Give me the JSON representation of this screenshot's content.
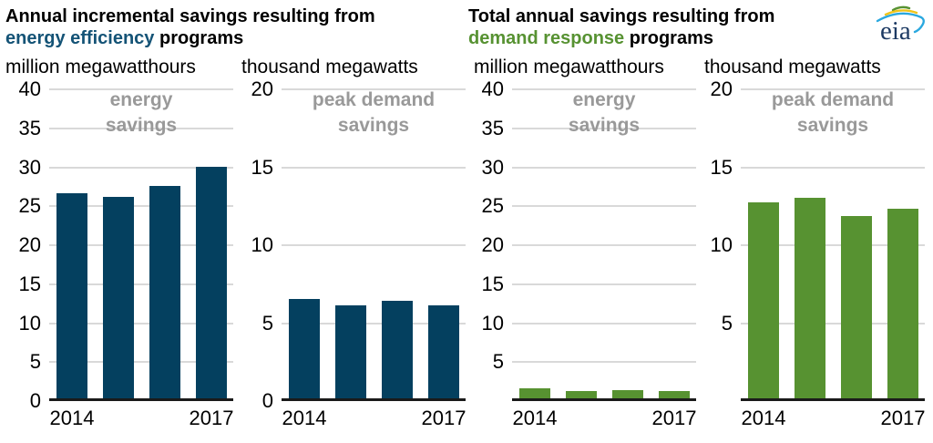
{
  "titles": {
    "left": {
      "line1": "Annual incremental savings resulting from",
      "accent": "energy efficiency",
      "rest": "programs"
    },
    "right": {
      "line1": "Total annual savings resulting from",
      "accent": "demand response",
      "rest": "programs"
    }
  },
  "logo": {
    "text": "eia"
  },
  "colors": {
    "ee_bar": "#04405f",
    "dr_bar": "#579231",
    "ee_accent": "#145376",
    "dr_accent": "#579232",
    "panel_label_gray": "#999999",
    "gridline": "#d9d9d9",
    "axis_line": "#1a1a1a"
  },
  "chart_data": [
    {
      "type": "bar",
      "group": "energy efficiency",
      "label_lines": [
        "energy",
        "savings"
      ],
      "unit": "million megawatthours",
      "categories": [
        "2014",
        "2015",
        "2016",
        "2017"
      ],
      "values": [
        26.5,
        26.1,
        27.5,
        29.9
      ],
      "ylim": [
        0,
        40
      ],
      "yticks": [
        40,
        35,
        30,
        25,
        20,
        15,
        10,
        5,
        0
      ],
      "bar_color": "#04405f",
      "visible_x_labels": [
        "2014",
        "2017"
      ]
    },
    {
      "type": "bar",
      "group": "energy efficiency",
      "label_lines": [
        "peak demand",
        "savings"
      ],
      "unit": "thousand megawatts",
      "categories": [
        "2014",
        "2015",
        "2016",
        "2017"
      ],
      "values": [
        6.5,
        6.1,
        6.4,
        6.1
      ],
      "ylim": [
        0,
        20
      ],
      "yticks": [
        20,
        15,
        10,
        5,
        0
      ],
      "bar_color": "#04405f",
      "visible_x_labels": [
        "2014",
        "2017"
      ]
    },
    {
      "type": "bar",
      "group": "demand response",
      "label_lines": [
        "energy",
        "savings"
      ],
      "unit": "million megawatthours",
      "categories": [
        "2014",
        "2015",
        "2016",
        "2017"
      ],
      "values": [
        1.5,
        1.2,
        1.3,
        1.2
      ],
      "ylim": [
        0,
        40
      ],
      "yticks": [
        40,
        35,
        30,
        25,
        20,
        15,
        10,
        5
      ],
      "bar_color": "#579231",
      "visible_x_labels": [
        "2014",
        "2017"
      ]
    },
    {
      "type": "bar",
      "group": "demand response",
      "label_lines": [
        "peak demand",
        "savings"
      ],
      "unit": "thousand megawatts",
      "categories": [
        "2014",
        "2015",
        "2016",
        "2017"
      ],
      "values": [
        12.7,
        13.0,
        11.8,
        12.3
      ],
      "ylim": [
        0,
        20
      ],
      "yticks": [
        20,
        15,
        10,
        5
      ],
      "bar_color": "#579231",
      "visible_x_labels": [
        "2014",
        "2017"
      ]
    }
  ]
}
